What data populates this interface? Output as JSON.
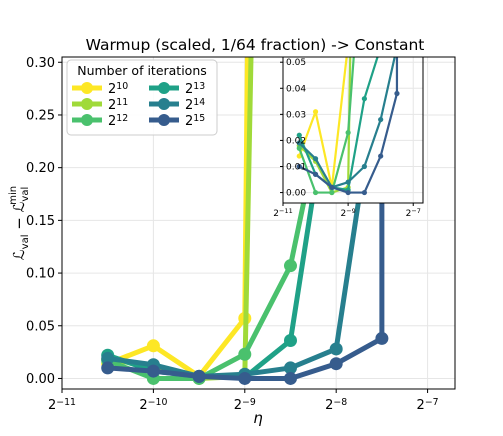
{
  "chart_data": {
    "type": "line",
    "title": "Warmup (scaled, 1/64 fraction) -> Constant",
    "xlabel": "η",
    "ylabel": "L_val − L_val^min",
    "xscale": "log2",
    "xlim_log2": [
      -11,
      -6.7
    ],
    "ylim": [
      -0.01,
      0.305
    ],
    "x_ticks": [
      {
        "base": "2",
        "exp": "−11",
        "log2": -11
      },
      {
        "base": "2",
        "exp": "−10",
        "log2": -10
      },
      {
        "base": "2",
        "exp": "−9",
        "log2": -9
      },
      {
        "base": "2",
        "exp": "−8",
        "log2": -8
      },
      {
        "base": "2",
        "exp": "−7",
        "log2": -7
      }
    ],
    "y_ticks": [
      "0.00",
      "0.05",
      "0.10",
      "0.15",
      "0.20",
      "0.25",
      "0.30"
    ],
    "grid": true,
    "legend": {
      "title": "Number of iterations",
      "placement": "top-left",
      "entries": [
        {
          "base": "2",
          "exp": "10"
        },
        {
          "base": "2",
          "exp": "11"
        },
        {
          "base": "2",
          "exp": "12"
        },
        {
          "base": "2",
          "exp": "13"
        },
        {
          "base": "2",
          "exp": "14"
        },
        {
          "base": "2",
          "exp": "15"
        }
      ]
    },
    "series": [
      {
        "color": "#fde725",
        "x_log2": [
          -10.5,
          -10,
          -9.5,
          -9
        ],
        "y": [
          0.014,
          0.031,
          0.002,
          0.057
        ],
        "exit_x_log2": -8.97
      },
      {
        "color": "#a0da39",
        "x_log2": [
          -10.5,
          -10,
          -9.5,
          -9
        ],
        "y": [
          0.018,
          0.012,
          0.0,
          0.002
        ],
        "exit_x_log2": -8.93
      },
      {
        "color": "#4ac16d",
        "x_log2": [
          -10.5,
          -10,
          -9.5,
          -9,
          -8.5
        ],
        "y": [
          0.017,
          0.0,
          0.0,
          0.023,
          0.107
        ],
        "exit_x_log2": -8.0
      },
      {
        "color": "#1fa187",
        "x_log2": [
          -10.5,
          -10,
          -9.5,
          -9,
          -8.5
        ],
        "y": [
          0.022,
          0.007,
          0.002,
          0.001,
          0.036
        ],
        "exit_x_log2": -8.0
      },
      {
        "color": "#277f8e",
        "x_log2": [
          -10.5,
          -10,
          -9.5,
          -9,
          -8.5,
          -8
        ],
        "y": [
          0.019,
          0.013,
          0.002,
          0.004,
          0.01,
          0.028
        ],
        "exit_x_log2": -7.5
      },
      {
        "color": "#365c8d",
        "x_log2": [
          -10.5,
          -10,
          -9.5,
          -9,
          -8.5,
          -8,
          -7.5
        ],
        "y": [
          0.01,
          0.007,
          0.002,
          0.0,
          0.0,
          0.014,
          0.038
        ],
        "exit_x_log2": -7.5
      }
    ],
    "inset": {
      "xlim_log2": [
        -11,
        -6.7
      ],
      "ylim": [
        -0.004,
        0.052
      ],
      "x_ticks": [
        {
          "base": "2",
          "exp": "−11",
          "log2": -11
        },
        {
          "base": "2",
          "exp": "−9",
          "log2": -9
        },
        {
          "base": "2",
          "exp": "−7",
          "log2": -7
        }
      ],
      "y_ticks": [
        "0.00",
        "0.01",
        "0.02",
        "0.03",
        "0.04",
        "0.05"
      ]
    }
  }
}
